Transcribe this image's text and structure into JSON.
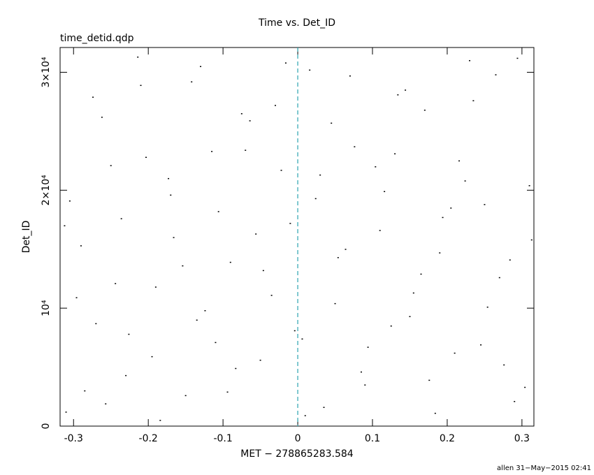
{
  "chart_data": {
    "type": "scatter",
    "title": "Time vs. Det_ID",
    "subtitle": "time_detid.qdp",
    "x_label": "MET − 278865283.584",
    "y_label": "Det_ID",
    "footer": "allen 31−May−2015 02:41",
    "xlim": [
      -0.318,
      0.316
    ],
    "ylim": [
      0,
      32100
    ],
    "xticks": [
      -0.3,
      -0.2,
      -0.1,
      0,
      0.1,
      0.2,
      0.3
    ],
    "yticks": [
      0,
      {
        "value": 10000,
        "label": "10⁴"
      },
      {
        "value": 20000,
        "label": "2×10⁴"
      },
      {
        "value": 30000,
        "label": "3×10⁴"
      }
    ],
    "vline": {
      "x": 0,
      "color": "#2aa3b0"
    },
    "color": "#000000",
    "x": [
      -0.31,
      -0.29,
      -0.27,
      -0.25,
      -0.23,
      -0.21,
      -0.19,
      -0.17,
      -0.15,
      -0.13,
      -0.11,
      -0.09,
      -0.07,
      -0.05,
      -0.03,
      -0.01,
      0.01,
      0.03,
      0.05,
      0.07,
      0.09,
      0.11,
      0.13,
      0.15,
      0.17,
      0.19,
      0.21,
      0.23,
      0.25,
      0.27,
      0.29,
      0.31,
      -0.305,
      -0.285,
      -0.262,
      -0.244,
      -0.226,
      -0.203,
      -0.184,
      -0.166,
      -0.142,
      -0.124,
      -0.106,
      -0.083,
      -0.064,
      -0.046,
      -0.022,
      -0.004,
      0.016,
      0.035,
      0.054,
      0.076,
      0.094,
      0.116,
      0.134,
      0.155,
      0.176,
      0.194,
      0.216,
      0.235,
      0.254,
      0.276,
      0.294,
      0.313,
      -0.296,
      -0.274,
      -0.257,
      -0.236,
      -0.214,
      -0.195,
      -0.173,
      -0.154,
      -0.135,
      -0.115,
      -0.094,
      -0.075,
      -0.056,
      -0.035,
      -0.016,
      0.006,
      0.024,
      0.045,
      0.064,
      0.085,
      0.104,
      0.125,
      0.144,
      0.165,
      0.184,
      0.205,
      0.224,
      0.245,
      0.265,
      0.284,
      0.304,
      -0.312
    ],
    "y": [
      1200,
      15300,
      8700,
      22100,
      4300,
      28900,
      11800,
      19600,
      2600,
      30500,
      7100,
      13900,
      23400,
      5600,
      27200,
      17200,
      900,
      21300,
      10400,
      29700,
      3500,
      16600,
      23100,
      9300,
      26800,
      14700,
      6200,
      31000,
      18800,
      12600,
      2100,
      20400,
      19100,
      3000,
      26200,
      12100,
      7800,
      22800,
      500,
      16000,
      29200,
      9800,
      18200,
      4900,
      25900,
      13200,
      21700,
      8100,
      30200,
      1600,
      14300,
      23700,
      6700,
      19900,
      28100,
      11300,
      3900,
      17700,
      22500,
      27600,
      10100,
      5200,
      31200,
      15800,
      10900,
      27900,
      1900,
      17600,
      31300,
      5900,
      21000,
      13600,
      9000,
      23300,
      2900,
      26500,
      16300,
      11100,
      30800,
      7400,
      19300,
      25700,
      15000,
      4600,
      22000,
      8500,
      28500,
      12900,
      1100,
      18500,
      20800,
      6900,
      29800,
      14100,
      3300,
      17000
    ]
  }
}
